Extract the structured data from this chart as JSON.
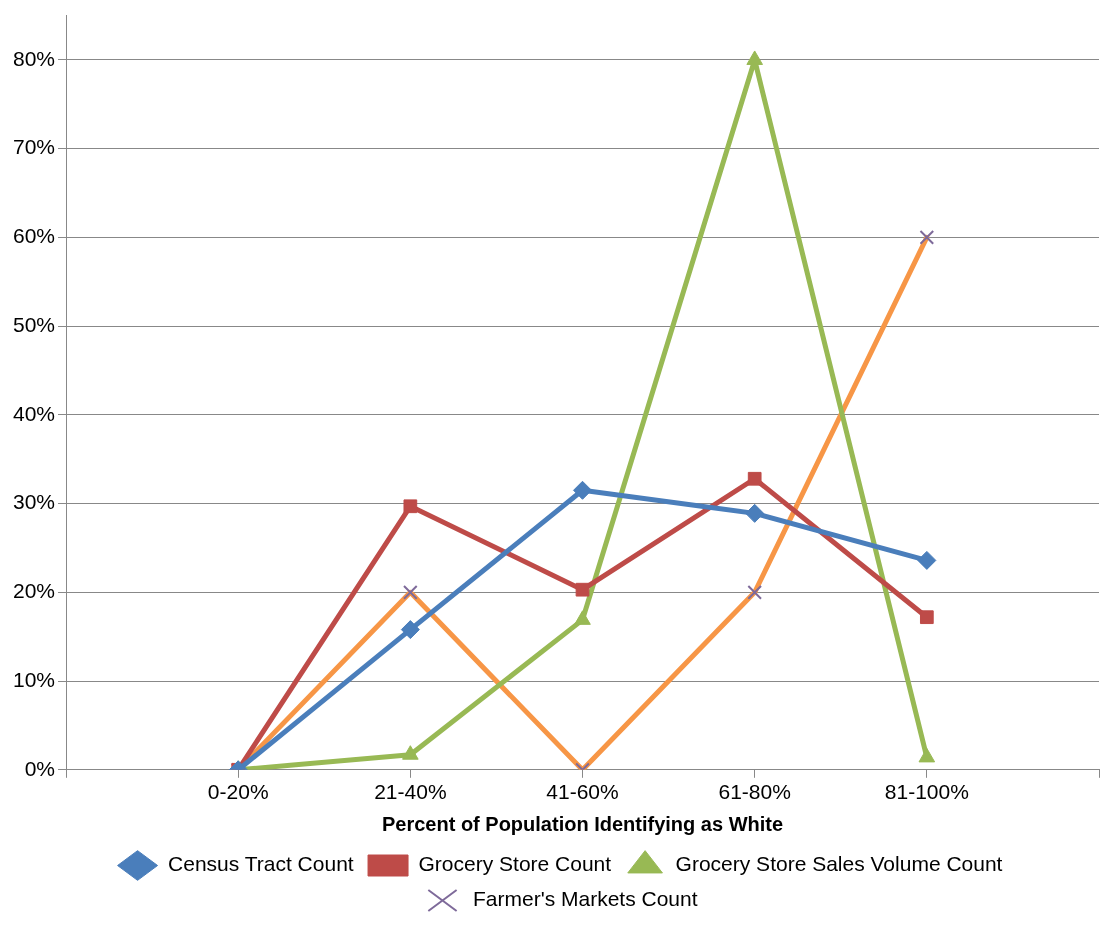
{
  "chart_data": {
    "type": "line",
    "xlabel": "Percent of Population Identifying as White",
    "categories": [
      null,
      "0-20%",
      "21-40%",
      "41-60%",
      "61-80%",
      "81-100%",
      null
    ],
    "series": [
      {
        "name": "Census Tract Count",
        "color": "#4a7ebb",
        "marker": "diamond",
        "values": [
          null,
          0,
          15.8,
          31.5,
          28.9,
          23.6,
          null
        ]
      },
      {
        "name": "Grocery Store Count",
        "color": "#be4b48",
        "marker": "square",
        "values": [
          null,
          0,
          29.7,
          20.3,
          32.8,
          17.2,
          null
        ]
      },
      {
        "name": "Grocery Store Sales Volume Count",
        "color": "#98b954",
        "marker": "triangle",
        "values": [
          null,
          0,
          1.7,
          16.9,
          80,
          1.4,
          null
        ]
      },
      {
        "name": "Farmer's Markets Count",
        "color": "#f79646",
        "marker": "cross",
        "values": [
          null,
          0,
          20,
          0,
          20,
          60,
          null
        ]
      }
    ],
    "ylim": [
      0,
      85
    ],
    "yticks": [
      {
        "value": 0,
        "label": "0%"
      },
      {
        "value": 10,
        "label": "10%"
      },
      {
        "value": 20,
        "label": "20%"
      },
      {
        "value": 30,
        "label": "30%"
      },
      {
        "value": 40,
        "label": "40%"
      },
      {
        "value": 50,
        "label": "50%"
      },
      {
        "value": 60,
        "label": "60%"
      },
      {
        "value": 70,
        "label": "70%"
      },
      {
        "value": 80,
        "label": "80%"
      }
    ],
    "grid": "y",
    "legend": "bottom",
    "line_style": "solid"
  }
}
